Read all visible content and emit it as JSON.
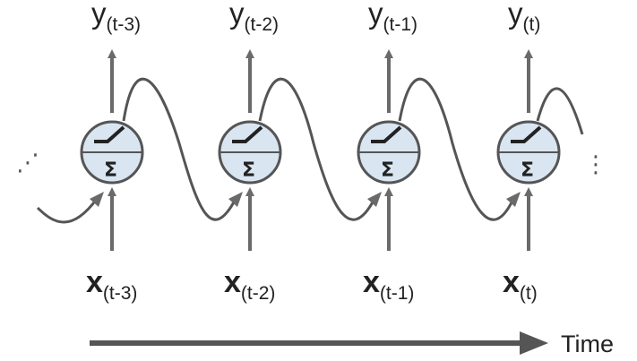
{
  "cells": [
    {
      "output_var": "y",
      "output_sub": "(t-3)",
      "input_var": "x",
      "input_sub": "(t-3)",
      "neuron_symbol": "Σ"
    },
    {
      "output_var": "y",
      "output_sub": "(t-2)",
      "input_var": "x",
      "input_sub": "(t-2)",
      "neuron_symbol": "Σ"
    },
    {
      "output_var": "y",
      "output_sub": "(t-1)",
      "input_var": "x",
      "input_sub": "(t-1)",
      "neuron_symbol": "Σ"
    },
    {
      "output_var": "y",
      "output_sub": "(t)",
      "input_var": "x",
      "input_sub": "(t)",
      "neuron_symbol": "Σ"
    }
  ],
  "continuation_marks": {
    "left": "⋰",
    "right": "⋮"
  },
  "time_axis": {
    "label": "Time"
  },
  "colors": {
    "neuron_fill": "#d9e6f2",
    "neuron_stroke": "#555555",
    "arrow": "#6a6a6a",
    "curve": "#555555",
    "text": "#222222"
  }
}
